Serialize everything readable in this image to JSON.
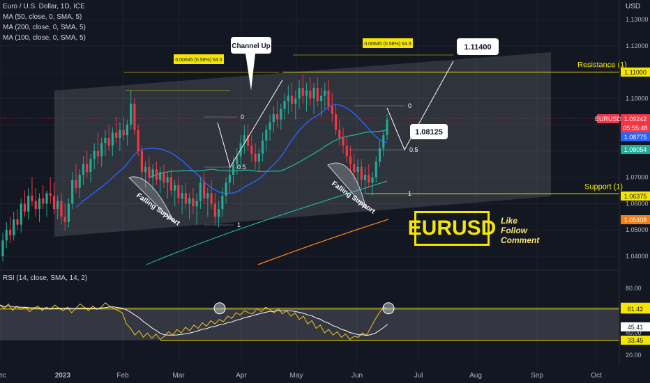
{
  "header": {
    "symbol_line": "Euro / U.S. Dollar, 1D, ICE",
    "indicators": [
      "MA (50, close, 0, SMA, 5)",
      "MA (200, close, 0, SMA, 5)",
      "MA (100, close, 0, SMA, 5)"
    ],
    "rsi_label": "RSI (14, close, SMA, 14, 2)",
    "currency": "USD"
  },
  "promo": {
    "brand": "EURUSD",
    "lines": [
      "Like",
      "Follow",
      "Comment"
    ]
  },
  "chart_data": {
    "type": "candlestick",
    "symbol": "EURUSD",
    "timeframe": "1D",
    "x_ticks": [
      "Dec",
      "2023",
      "Feb",
      "Mar",
      "Apr",
      "May",
      "Jun",
      "Jul",
      "Aug",
      "Sep",
      "Oct"
    ],
    "price_axis": {
      "ticks": [
        "1.13000",
        "1.12000",
        "1.11000",
        "1.10000",
        "1.09000",
        "1.08000",
        "1.07000",
        "1.06000",
        "1.05000",
        "1.04000"
      ],
      "range": [
        1.035,
        1.135
      ]
    },
    "price_labels": [
      {
        "text": "EURUSD",
        "color": "#f23645"
      },
      {
        "text": "1.09242",
        "color": "#f23645"
      },
      {
        "text": "05:55:48",
        "color": "#f23645"
      },
      {
        "text": "1.08775",
        "color": "#2962ff"
      },
      {
        "text": "1.08054",
        "color": "#22ab94"
      },
      {
        "text": "1.06375",
        "color": "#f5e600"
      },
      {
        "text": "1.05408",
        "color": "#f57f17"
      },
      {
        "text": "1.11000",
        "color": "#f5e600"
      }
    ],
    "levels": {
      "resistance": {
        "label": "Resistance (1)",
        "value": 1.11
      },
      "support": {
        "label": "Support (1)",
        "value": 1.06375
      }
    },
    "annotations": {
      "channel": "Channel Up",
      "falling_support": "Falling Support",
      "target_1": "1.11400",
      "target_2": "1.08125",
      "measure": "0.00645 (0.58%) 64.5",
      "fib_0": "0",
      "fib_half": "0.5",
      "fib_one": "1"
    },
    "candles": [
      [
        1.04,
        1.049,
        1.038,
        1.046
      ],
      [
        1.046,
        1.053,
        1.043,
        1.05
      ],
      [
        1.05,
        1.055,
        1.045,
        1.048
      ],
      [
        1.048,
        1.057,
        1.046,
        1.054
      ],
      [
        1.054,
        1.058,
        1.05,
        1.052
      ],
      [
        1.052,
        1.062,
        1.049,
        1.06
      ],
      [
        1.06,
        1.065,
        1.055,
        1.057
      ],
      [
        1.057,
        1.066,
        1.054,
        1.063
      ],
      [
        1.063,
        1.07,
        1.059,
        1.061
      ],
      [
        1.061,
        1.066,
        1.055,
        1.058
      ],
      [
        1.058,
        1.064,
        1.053,
        1.062
      ],
      [
        1.062,
        1.067,
        1.058,
        1.06
      ],
      [
        1.06,
        1.065,
        1.055,
        1.064
      ],
      [
        1.064,
        1.07,
        1.06,
        1.063
      ],
      [
        1.063,
        1.068,
        1.056,
        1.058
      ],
      [
        1.058,
        1.063,
        1.054,
        1.061
      ],
      [
        1.061,
        1.064,
        1.052,
        1.055
      ],
      [
        1.055,
        1.06,
        1.05,
        1.053
      ],
      [
        1.053,
        1.062,
        1.051,
        1.06
      ],
      [
        1.06,
        1.072,
        1.058,
        1.069
      ],
      [
        1.069,
        1.075,
        1.064,
        1.066
      ],
      [
        1.066,
        1.073,
        1.062,
        1.071
      ],
      [
        1.071,
        1.078,
        1.067,
        1.075
      ],
      [
        1.075,
        1.08,
        1.07,
        1.072
      ],
      [
        1.072,
        1.079,
        1.068,
        1.077
      ],
      [
        1.077,
        1.083,
        1.073,
        1.08
      ],
      [
        1.08,
        1.087,
        1.075,
        1.078
      ],
      [
        1.078,
        1.085,
        1.074,
        1.083
      ],
      [
        1.083,
        1.088,
        1.078,
        1.085
      ],
      [
        1.085,
        1.09,
        1.08,
        1.082
      ],
      [
        1.082,
        1.089,
        1.078,
        1.087
      ],
      [
        1.087,
        1.093,
        1.083,
        1.085
      ],
      [
        1.085,
        1.091,
        1.08,
        1.088
      ],
      [
        1.088,
        1.093,
        1.084,
        1.086
      ],
      [
        1.086,
        1.092,
        1.082,
        1.09
      ],
      [
        1.09,
        1.103,
        1.088,
        1.098
      ],
      [
        1.098,
        1.1,
        1.086,
        1.088
      ],
      [
        1.088,
        1.09,
        1.078,
        1.08
      ],
      [
        1.08,
        1.082,
        1.07,
        1.072
      ],
      [
        1.072,
        1.076,
        1.066,
        1.074
      ],
      [
        1.074,
        1.078,
        1.068,
        1.07
      ],
      [
        1.07,
        1.075,
        1.065,
        1.073
      ],
      [
        1.073,
        1.076,
        1.067,
        1.069
      ],
      [
        1.069,
        1.074,
        1.064,
        1.072
      ],
      [
        1.072,
        1.075,
        1.066,
        1.068
      ],
      [
        1.068,
        1.072,
        1.062,
        1.07
      ],
      [
        1.07,
        1.073,
        1.063,
        1.065
      ],
      [
        1.065,
        1.069,
        1.059,
        1.067
      ],
      [
        1.067,
        1.07,
        1.06,
        1.062
      ],
      [
        1.062,
        1.067,
        1.056,
        1.064
      ],
      [
        1.064,
        1.068,
        1.058,
        1.06
      ],
      [
        1.06,
        1.064,
        1.054,
        1.062
      ],
      [
        1.062,
        1.066,
        1.056,
        1.059
      ],
      [
        1.059,
        1.064,
        1.052,
        1.061
      ],
      [
        1.061,
        1.07,
        1.058,
        1.068
      ],
      [
        1.068,
        1.072,
        1.06,
        1.062
      ],
      [
        1.062,
        1.066,
        1.055,
        1.064
      ],
      [
        1.064,
        1.069,
        1.058,
        1.06
      ],
      [
        1.06,
        1.064,
        1.052,
        1.055
      ],
      [
        1.055,
        1.061,
        1.051,
        1.058
      ],
      [
        1.058,
        1.066,
        1.055,
        1.063
      ],
      [
        1.063,
        1.07,
        1.06,
        1.068
      ],
      [
        1.068,
        1.075,
        1.064,
        1.071
      ],
      [
        1.071,
        1.078,
        1.067,
        1.075
      ],
      [
        1.075,
        1.081,
        1.071,
        1.078
      ],
      [
        1.078,
        1.086,
        1.074,
        1.083
      ],
      [
        1.083,
        1.09,
        1.079,
        1.086
      ],
      [
        1.086,
        1.09,
        1.08,
        1.082
      ],
      [
        1.082,
        1.086,
        1.076,
        1.079
      ],
      [
        1.079,
        1.083,
        1.073,
        1.076
      ],
      [
        1.076,
        1.081,
        1.072,
        1.079
      ],
      [
        1.079,
        1.087,
        1.076,
        1.084
      ],
      [
        1.084,
        1.09,
        1.08,
        1.088
      ],
      [
        1.088,
        1.094,
        1.084,
        1.091
      ],
      [
        1.091,
        1.097,
        1.087,
        1.094
      ],
      [
        1.094,
        1.099,
        1.089,
        1.092
      ],
      [
        1.092,
        1.098,
        1.088,
        1.096
      ],
      [
        1.096,
        1.102,
        1.092,
        1.099
      ],
      [
        1.099,
        1.105,
        1.094,
        1.101
      ],
      [
        1.101,
        1.106,
        1.095,
        1.098
      ],
      [
        1.098,
        1.103,
        1.092,
        1.1
      ],
      [
        1.1,
        1.107,
        1.096,
        1.104
      ],
      [
        1.104,
        1.109,
        1.098,
        1.101
      ],
      [
        1.101,
        1.106,
        1.095,
        1.103
      ],
      [
        1.103,
        1.108,
        1.097,
        1.1
      ],
      [
        1.1,
        1.106,
        1.094,
        1.104
      ],
      [
        1.104,
        1.108,
        1.097,
        1.099
      ],
      [
        1.099,
        1.104,
        1.093,
        1.101
      ],
      [
        1.101,
        1.106,
        1.096,
        1.103
      ],
      [
        1.103,
        1.107,
        1.095,
        1.097
      ],
      [
        1.097,
        1.102,
        1.091,
        1.094
      ],
      [
        1.094,
        1.098,
        1.086,
        1.088
      ],
      [
        1.088,
        1.092,
        1.082,
        1.085
      ],
      [
        1.085,
        1.089,
        1.079,
        1.082
      ],
      [
        1.082,
        1.086,
        1.076,
        1.078
      ],
      [
        1.078,
        1.082,
        1.072,
        1.075
      ],
      [
        1.075,
        1.079,
        1.069,
        1.072
      ],
      [
        1.072,
        1.077,
        1.067,
        1.074
      ],
      [
        1.074,
        1.077,
        1.066,
        1.069
      ],
      [
        1.069,
        1.074,
        1.064,
        1.071
      ],
      [
        1.071,
        1.075,
        1.066,
        1.068
      ],
      [
        1.068,
        1.072,
        1.063,
        1.07
      ],
      [
        1.07,
        1.078,
        1.068,
        1.076
      ],
      [
        1.076,
        1.084,
        1.074,
        1.081
      ],
      [
        1.081,
        1.088,
        1.078,
        1.086
      ],
      [
        1.086,
        1.094,
        1.084,
        1.092
      ]
    ],
    "ma50_label": "MA 50",
    "rsi": {
      "levels": [
        80.0,
        63.0,
        61.42,
        45.41,
        40.0,
        33.45,
        20.0
      ],
      "range": [
        15,
        90
      ],
      "values": [
        65,
        62,
        66,
        60,
        64,
        61,
        63,
        59,
        62,
        64,
        60,
        63,
        61,
        65,
        62,
        60,
        63,
        58,
        62,
        66,
        63,
        60,
        64,
        61,
        63,
        67,
        64,
        62,
        60,
        58,
        48,
        44,
        38,
        42,
        36,
        40,
        35,
        39,
        34,
        37,
        41,
        38,
        43,
        40,
        45,
        42,
        47,
        44,
        49,
        46,
        51,
        48,
        52,
        50,
        55,
        53,
        58,
        56,
        60,
        58,
        57,
        62,
        59,
        63,
        61,
        58,
        62,
        57,
        60,
        55,
        58,
        52,
        55,
        48,
        51,
        44,
        47,
        40,
        43,
        38,
        41,
        36,
        39,
        34,
        37,
        36,
        40,
        38,
        45,
        52,
        58,
        63,
        61
      ]
    }
  }
}
